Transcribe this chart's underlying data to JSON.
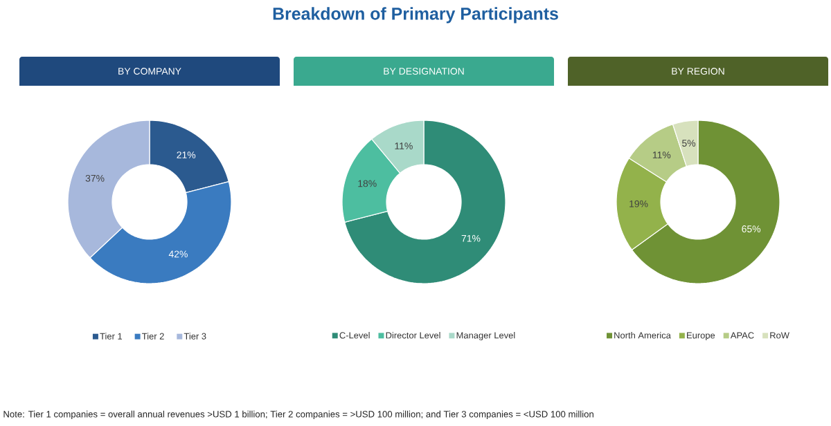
{
  "chart_data": [
    {
      "type": "donut",
      "subtitle": "BY COMPANY",
      "categories": [
        "Tier 1",
        "Tier 2",
        "Tier 3"
      ],
      "values": [
        21,
        42,
        37
      ],
      "colors": [
        "#2b5a8f",
        "#3a7bc0",
        "#a7b8dc"
      ],
      "value_labels": [
        "21%",
        "42%",
        "37%"
      ],
      "legend": "bottom",
      "annotations": [
        "Note: Tier 1 companies = overall annual revenues >USD 1 billion; Tier 2 companies = >USD 100 million; and Tier 3 companies = <USD 100 million"
      ]
    },
    {
      "type": "donut",
      "title": "Breakdown of Primary Participants",
      "subtitle": "BY DESIGNATION",
      "categories": [
        "C-Level",
        "Director Level",
        "Manager Level"
      ],
      "values": [
        71,
        18,
        11
      ],
      "colors": [
        "#2f8c77",
        "#4dbea0",
        "#a9d9c9"
      ],
      "value_labels": [
        "71%",
        "18%",
        "11%"
      ],
      "legend": "bottom"
    },
    {
      "type": "donut",
      "subtitle": "BY REGION",
      "categories": [
        "North America",
        "Europe",
        "APAC",
        "RoW"
      ],
      "values": [
        65,
        19,
        11,
        5
      ],
      "colors": [
        "#6f9235",
        "#93b24b",
        "#b6cc86",
        "#d7e1bd"
      ],
      "value_labels": [
        "65%",
        "19%",
        "11%",
        "5%"
      ],
      "legend": "bottom"
    }
  ]
}
